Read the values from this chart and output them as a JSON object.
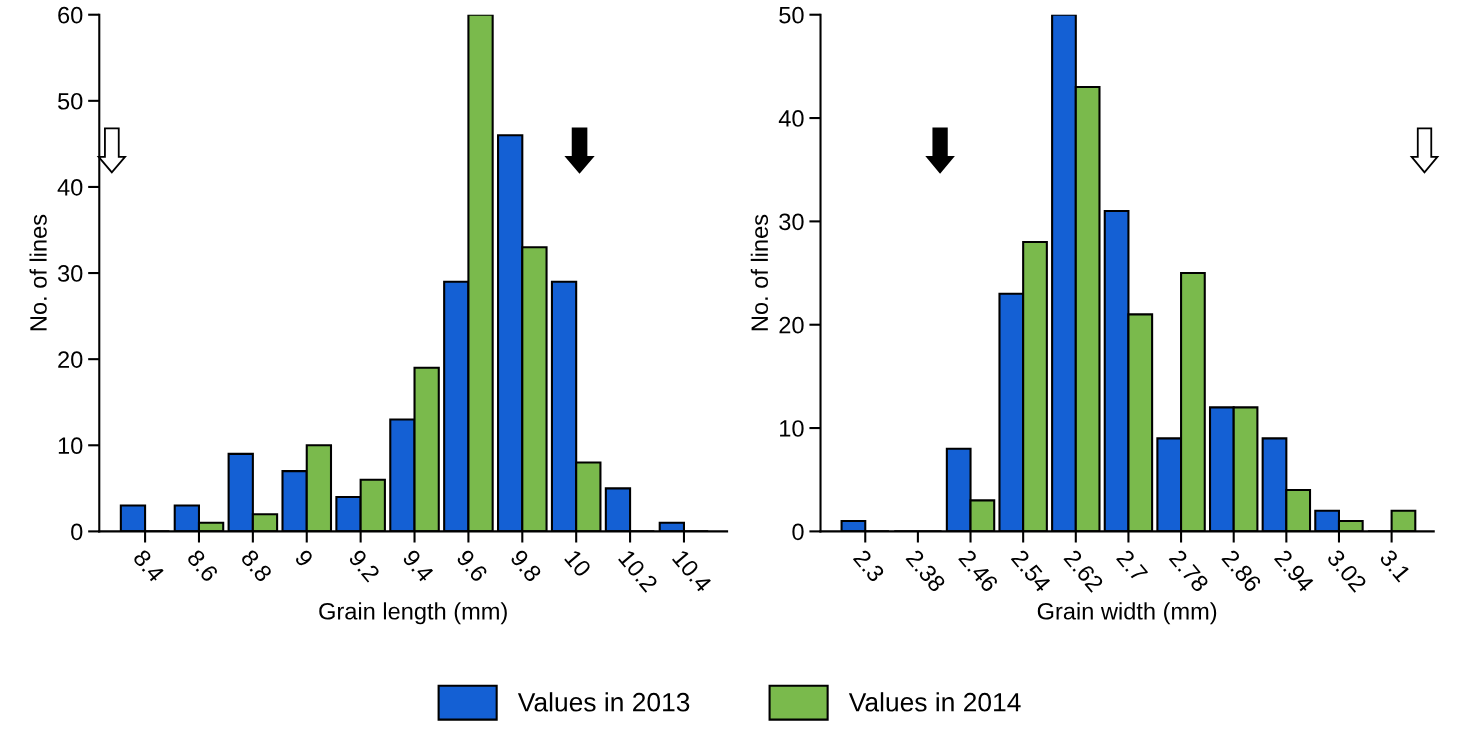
{
  "chart_data": [
    {
      "type": "bar",
      "xlabel": "Grain length (mm)",
      "ylabel": "No. of lines",
      "categories": [
        "8.4",
        "8.6",
        "8.8",
        "9",
        "9.2",
        "9.4",
        "9.6",
        "9.8",
        "10",
        "10.2",
        "10.4"
      ],
      "series": [
        {
          "name": "Values in 2013",
          "color": "#1460d4",
          "values": [
            3,
            3,
            9,
            7,
            4,
            13,
            29,
            46,
            29,
            5,
            1
          ]
        },
        {
          "name": "Values in 2014",
          "color": "#7aba4c",
          "values": [
            0,
            1,
            2,
            10,
            6,
            19,
            60,
            33,
            8,
            0,
            0
          ]
        }
      ],
      "ylim": [
        0,
        60
      ],
      "yticks": [
        0,
        10,
        20,
        30,
        40,
        50,
        60
      ],
      "grid": false,
      "legend": "bottom"
    },
    {
      "type": "bar",
      "xlabel": "Grain width (mm)",
      "ylabel": "No. of lines",
      "categories": [
        "2.3",
        "2.38",
        "2.46",
        "2.54",
        "2.62",
        "2.7",
        "2.78",
        "2.86",
        "2.94",
        "3.02",
        "3.1"
      ],
      "series": [
        {
          "name": "Values in 2013",
          "color": "#1460d4",
          "values": [
            1,
            0,
            8,
            23,
            50,
            31,
            9,
            12,
            9,
            2,
            0
          ]
        },
        {
          "name": "Values in 2014",
          "color": "#7aba4c",
          "values": [
            0,
            0,
            3,
            28,
            43,
            21,
            25,
            12,
            4,
            1,
            2
          ]
        }
      ],
      "ylim": [
        0,
        50
      ],
      "yticks": [
        0,
        10,
        20,
        30,
        40,
        50
      ],
      "grid": false,
      "legend": "bottom"
    }
  ]
}
